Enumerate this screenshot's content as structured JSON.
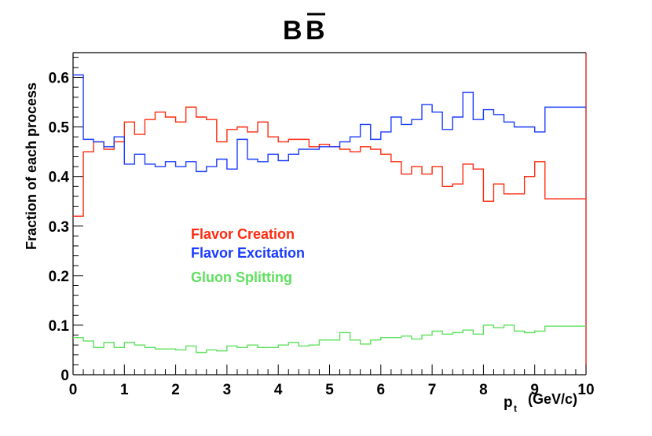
{
  "chart_data": {
    "type": "line",
    "title_main": "B",
    "title_bar": "B",
    "xlabel_main": "p",
    "xlabel_sub": "t",
    "xlabel_unit": "(GeV/c)",
    "ylabel": "Fraction of each process",
    "xlim": [
      0,
      10
    ],
    "ylim": [
      0,
      0.65
    ],
    "x_ticks": [
      "0",
      "1",
      "2",
      "3",
      "4",
      "5",
      "6",
      "7",
      "8",
      "9",
      "10"
    ],
    "y_ticks": [
      "0",
      "0.1",
      "0.2",
      "0.3",
      "0.4",
      "0.5",
      "0.6"
    ],
    "bin_width": 0.2,
    "bin_edges_start": 0,
    "series": [
      {
        "name": "Flavor Creation",
        "color": "#ff2a0f",
        "values": [
          0.32,
          0.45,
          0.47,
          0.455,
          0.47,
          0.51,
          0.485,
          0.515,
          0.53,
          0.52,
          0.51,
          0.54,
          0.52,
          0.515,
          0.47,
          0.495,
          0.5,
          0.49,
          0.51,
          0.48,
          0.47,
          0.475,
          0.475,
          0.46,
          0.465,
          0.46,
          0.455,
          0.45,
          0.46,
          0.455,
          0.445,
          0.43,
          0.405,
          0.42,
          0.405,
          0.42,
          0.38,
          0.385,
          0.425,
          0.415,
          0.35,
          0.385,
          0.365,
          0.365,
          0.4,
          0.43,
          0.355,
          0.355,
          0.355,
          0.355
        ]
      },
      {
        "name": "Flavor Excitation",
        "color": "#1a3cff",
        "values": [
          0.605,
          0.475,
          0.47,
          0.46,
          0.48,
          0.425,
          0.445,
          0.425,
          0.42,
          0.43,
          0.42,
          0.43,
          0.41,
          0.42,
          0.435,
          0.415,
          0.475,
          0.435,
          0.43,
          0.445,
          0.432,
          0.445,
          0.455,
          0.455,
          0.46,
          0.46,
          0.47,
          0.48,
          0.505,
          0.475,
          0.49,
          0.52,
          0.505,
          0.515,
          0.545,
          0.53,
          0.495,
          0.52,
          0.57,
          0.515,
          0.535,
          0.525,
          0.51,
          0.5,
          0.5,
          0.49,
          0.54,
          0.54,
          0.54,
          0.54
        ]
      },
      {
        "name": "Gluon Splitting",
        "color": "#5fe05f",
        "values": [
          0.075,
          0.068,
          0.055,
          0.065,
          0.055,
          0.065,
          0.06,
          0.055,
          0.052,
          0.052,
          0.05,
          0.058,
          0.045,
          0.05,
          0.048,
          0.058,
          0.055,
          0.06,
          0.055,
          0.055,
          0.06,
          0.065,
          0.058,
          0.06,
          0.07,
          0.07,
          0.085,
          0.07,
          0.062,
          0.07,
          0.075,
          0.075,
          0.078,
          0.072,
          0.08,
          0.088,
          0.082,
          0.085,
          0.09,
          0.082,
          0.1,
          0.095,
          0.1,
          0.088,
          0.085,
          0.088,
          0.098,
          0.098,
          0.098,
          0.098
        ]
      }
    ],
    "legend": [
      {
        "label": "Flavor Creation",
        "color": "#ff2a0f"
      },
      {
        "label": "Flavor Excitation",
        "color": "#1a3cff"
      },
      {
        "label": "Gluon Splitting",
        "color": "#5fe05f"
      }
    ],
    "frame_color_left": "#000000",
    "frame_color_right": "#cc0000",
    "legend_placement": "left-center inside plot"
  }
}
